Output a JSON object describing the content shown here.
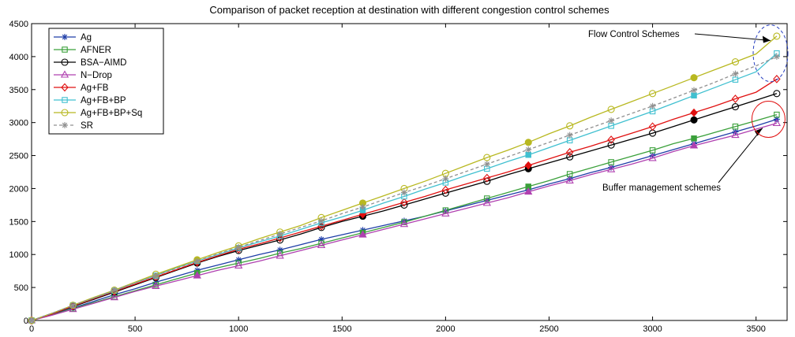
{
  "chart_data": {
    "type": "line",
    "title": "Comparison of packet reception at destination with different congestion control schemes",
    "xlabel": "",
    "ylabel": "",
    "xlim": [
      0,
      3650
    ],
    "ylim": [
      0,
      4500
    ],
    "xticks": [
      0,
      500,
      1000,
      1500,
      2000,
      2500,
      3000,
      3500
    ],
    "yticks": [
      0,
      500,
      1000,
      1500,
      2000,
      2500,
      3000,
      3500,
      4000,
      4500
    ],
    "grid": false,
    "legend_position": "top-left",
    "x": [
      0,
      100,
      200,
      300,
      400,
      500,
      600,
      700,
      800,
      900,
      1000,
      1100,
      1200,
      1300,
      1400,
      1500,
      1600,
      1700,
      1800,
      1900,
      2000,
      2100,
      2200,
      2300,
      2400,
      2500,
      2600,
      2700,
      2800,
      2900,
      3000,
      3100,
      3200,
      3300,
      3400,
      3500,
      3600
    ],
    "series": [
      {
        "name": "Ag",
        "color": "#1f3ea8",
        "marker": "star",
        "dashed": false,
        "values": [
          0,
          90,
          190,
          290,
          390,
          480,
          580,
          670,
          760,
          840,
          920,
          1000,
          1070,
          1150,
          1230,
          1300,
          1370,
          1440,
          1510,
          1580,
          1660,
          1740,
          1820,
          1900,
          1980,
          2070,
          2150,
          2240,
          2320,
          2410,
          2500,
          2590,
          2680,
          2770,
          2860,
          2950,
          3050
        ]
      },
      {
        "name": "AFNER",
        "color": "#3aa03a",
        "marker": "square",
        "dashed": false,
        "values": [
          0,
          85,
          180,
          270,
          360,
          450,
          540,
          630,
          720,
          800,
          870,
          940,
          1020,
          1090,
          1170,
          1250,
          1330,
          1410,
          1490,
          1580,
          1670,
          1760,
          1850,
          1940,
          2030,
          2120,
          2220,
          2310,
          2400,
          2490,
          2580,
          2680,
          2760,
          2850,
          2940,
          3030,
          3120
        ]
      },
      {
        "name": "BSA−AIMD",
        "color": "#000000",
        "marker": "circle",
        "dashed": false,
        "values": [
          0,
          100,
          210,
          320,
          430,
          540,
          650,
          760,
          870,
          970,
          1060,
          1140,
          1220,
          1310,
          1410,
          1500,
          1580,
          1660,
          1750,
          1840,
          1930,
          2020,
          2110,
          2210,
          2300,
          2390,
          2480,
          2570,
          2660,
          2750,
          2840,
          2940,
          3040,
          3140,
          3240,
          3340,
          3440
        ]
      },
      {
        "name": "N−Drop",
        "color": "#b040b0",
        "marker": "triangle",
        "dashed": false,
        "values": [
          0,
          80,
          170,
          260,
          350,
          440,
          520,
          600,
          680,
          760,
          830,
          900,
          980,
          1060,
          1140,
          1220,
          1300,
          1380,
          1460,
          1540,
          1620,
          1700,
          1780,
          1860,
          1950,
          2040,
          2120,
          2210,
          2290,
          2370,
          2460,
          2560,
          2650,
          2730,
          2810,
          2900,
          2990
        ]
      },
      {
        "name": "Ag+FB",
        "color": "#e01010",
        "marker": "diamond",
        "dashed": false,
        "values": [
          0,
          100,
          220,
          330,
          440,
          550,
          660,
          770,
          880,
          980,
          1080,
          1160,
          1250,
          1340,
          1430,
          1520,
          1610,
          1700,
          1790,
          1880,
          1980,
          2070,
          2160,
          2250,
          2350,
          2450,
          2550,
          2640,
          2740,
          2840,
          2940,
          3050,
          3150,
          3250,
          3360,
          3460,
          3660
        ]
      },
      {
        "name": "Ag+FB+BP",
        "color": "#40c0d0",
        "marker": "square",
        "dashed": false,
        "values": [
          0,
          110,
          230,
          340,
          450,
          570,
          680,
          800,
          900,
          1000,
          1100,
          1190,
          1280,
          1380,
          1480,
          1570,
          1670,
          1780,
          1880,
          1990,
          2090,
          2200,
          2300,
          2410,
          2510,
          2620,
          2730,
          2840,
          2950,
          3060,
          3170,
          3290,
          3410,
          3530,
          3650,
          3770,
          4050
        ]
      },
      {
        "name": "Ag+FB+BP+Sq",
        "color": "#b8b820",
        "marker": "circle",
        "dashed": false,
        "values": [
          0,
          110,
          230,
          350,
          460,
          580,
          700,
          810,
          920,
          1030,
          1130,
          1240,
          1340,
          1440,
          1560,
          1670,
          1780,
          1890,
          2000,
          2110,
          2230,
          2350,
          2470,
          2580,
          2700,
          2830,
          2950,
          3080,
          3200,
          3320,
          3440,
          3560,
          3680,
          3800,
          3920,
          4040,
          4310
        ]
      },
      {
        "name": "SR",
        "color": "#909090",
        "marker": "star",
        "dashed": true,
        "values": [
          0,
          110,
          230,
          340,
          460,
          570,
          680,
          790,
          900,
          1010,
          1110,
          1210,
          1310,
          1410,
          1510,
          1620,
          1720,
          1830,
          1940,
          2040,
          2150,
          2260,
          2370,
          2480,
          2590,
          2700,
          2810,
          2920,
          3030,
          3140,
          3250,
          3370,
          3490,
          3610,
          3740,
          3860,
          4000
        ]
      }
    ],
    "annotations": [
      {
        "text": "Flow Control Schemes",
        "points_to": [
          3600,
          4100
        ]
      },
      {
        "text": "Buffer management schemes",
        "points_to": [
          3550,
          3060
        ]
      }
    ]
  }
}
